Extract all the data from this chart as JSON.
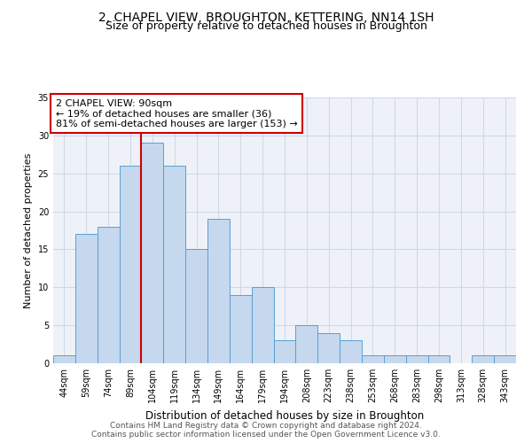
{
  "title": "2, CHAPEL VIEW, BROUGHTON, KETTERING, NN14 1SH",
  "subtitle": "Size of property relative to detached houses in Broughton",
  "xlabel": "Distribution of detached houses by size in Broughton",
  "ylabel": "Number of detached properties",
  "categories": [
    "44sqm",
    "59sqm",
    "74sqm",
    "89sqm",
    "104sqm",
    "119sqm",
    "134sqm",
    "149sqm",
    "164sqm",
    "179sqm",
    "194sqm",
    "208sqm",
    "223sqm",
    "238sqm",
    "253sqm",
    "268sqm",
    "283sqm",
    "298sqm",
    "313sqm",
    "328sqm",
    "343sqm"
  ],
  "values": [
    1,
    17,
    18,
    26,
    29,
    26,
    15,
    19,
    9,
    10,
    3,
    5,
    4,
    3,
    1,
    1,
    1,
    1,
    0,
    1,
    1
  ],
  "bar_color": "#c5d8ed",
  "bar_edge_color": "#5a9fd4",
  "reference_line_label": "2 CHAPEL VIEW: 90sqm",
  "annotation_line1": "← 19% of detached houses are smaller (36)",
  "annotation_line2": "81% of semi-detached houses are larger (153) →",
  "box_color": "#cc0000",
  "ylim": [
    0,
    35
  ],
  "yticks": [
    0,
    5,
    10,
    15,
    20,
    25,
    30,
    35
  ],
  "background_color": "#eef2f8",
  "grid_color": "#d0d8e8",
  "footer_line1": "Contains HM Land Registry data © Crown copyright and database right 2024.",
  "footer_line2": "Contains public sector information licensed under the Open Government Licence v3.0.",
  "title_fontsize": 10,
  "subtitle_fontsize": 9,
  "annotation_fontsize": 8,
  "ylabel_fontsize": 8,
  "xlabel_fontsize": 8.5,
  "tick_fontsize": 7,
  "footer_fontsize": 6.5
}
